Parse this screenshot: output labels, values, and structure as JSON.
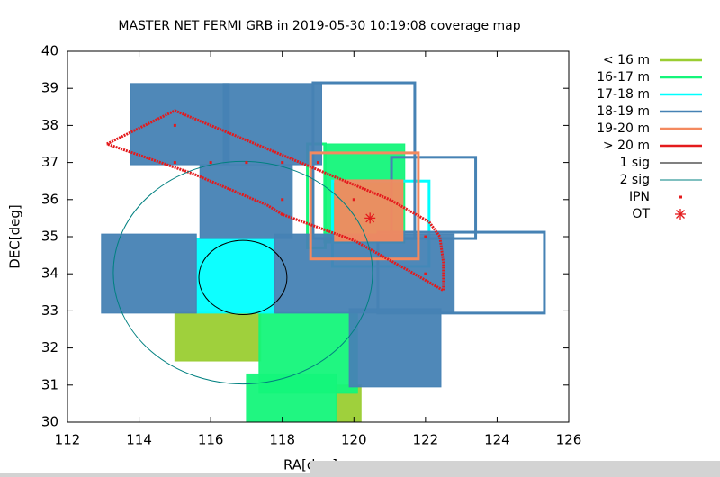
{
  "chart_data": {
    "type": "coverage",
    "title": "MASTER NET FERMI GRB in 2019-05-30 10:19:08 coverage map",
    "xlabel": "RA[deg]",
    "ylabel": "DEC[deg]",
    "xlim": [
      112,
      126
    ],
    "ylim": [
      30,
      40
    ],
    "xticks": [
      112,
      114,
      116,
      118,
      120,
      122,
      124,
      126
    ],
    "yticks": [
      30,
      31,
      32,
      33,
      34,
      35,
      36,
      37,
      38,
      39,
      40
    ],
    "series": [
      {
        "name": "< 16 m",
        "color": "#9acd32",
        "fields": {
          "x0": [
            115.0,
            119.5
          ],
          "x1": [
            117.4,
            120.2
          ],
          "y0": [
            31.65,
            30
          ],
          "y1": [
            32.96,
            31.0
          ],
          "filled": [
            true,
            true
          ]
        }
      },
      {
        "name": "16-17 m",
        "color": "#14f57a",
        "fields": {
          "x0": [
            117.35,
            117.0,
            119.16,
            118.7
          ],
          "x1": [
            120.1,
            119.5,
            121.42,
            119.2
          ],
          "y0": [
            30.78,
            30,
            34.83,
            34.7
          ],
          "y1": [
            32.96,
            31.3,
            37.5,
            37.5
          ],
          "filled": [
            true,
            true,
            true,
            false
          ]
        }
      },
      {
        "name": "17-18 m",
        "color": "#00ffff",
        "fields": {
          "x0": [
            115.6,
            119.4
          ],
          "x1": [
            117.8,
            122.1
          ],
          "y0": [
            32.94,
            34.2
          ],
          "y1": [
            34.95,
            36.5
          ],
          "filled": [
            true,
            false
          ]
        }
      },
      {
        "name": "18-19 m",
        "color": "#4682b4",
        "fields": {
          "x0": [
            113.76,
            116.35,
            112.95,
            117.78,
            119.87,
            115.7,
            118.86,
            121.05,
            120.67
          ],
          "x1": [
            116.52,
            119.1,
            115.6,
            122.8,
            122.43,
            118.28,
            121.7,
            123.4,
            125.32
          ],
          "y0": [
            36.94,
            36.94,
            32.94,
            32.94,
            30.95,
            34.95,
            34.95,
            34.95,
            32.94
          ],
          "y1": [
            39.13,
            39.13,
            35.07,
            35.07,
            33.06,
            36.94,
            39.15,
            37.14,
            35.12
          ],
          "filled": [
            true,
            true,
            true,
            true,
            true,
            true,
            false,
            false,
            false
          ]
        }
      },
      {
        "name": "19-20 m",
        "color": "#f4895f",
        "fields": {
          "x0": [
            119.46,
            118.79
          ],
          "x1": [
            121.37,
            121.8
          ],
          "y0": [
            34.88,
            34.4
          ],
          "y1": [
            36.53,
            37.26
          ],
          "filled": [
            true,
            false
          ]
        }
      },
      {
        "name": "> 20 m",
        "color": "#e41a1c",
        "track": {
          "x": [
            113.1,
            115.0,
            116.0,
            118.0,
            120.0,
            121.0,
            122.1,
            122.4,
            122.5,
            122.5,
            121.5,
            120.0,
            118.0,
            117.58,
            115.5,
            113.1
          ],
          "y": [
            37.5,
            38.4,
            38.0,
            37.2,
            36.4,
            36.0,
            35.4,
            35.0,
            34.3,
            33.55,
            34.1,
            34.9,
            35.6,
            35.85,
            36.7,
            37.5
          ]
        }
      }
    ],
    "sigma": [
      {
        "name": "1 sig",
        "color": "#000000",
        "cx": 116.9,
        "cy": 33.9,
        "rx": 1.23,
        "ry": 1.0
      },
      {
        "name": "2 sig",
        "color": "#008080",
        "cx": 116.9,
        "cy": 34.03,
        "rx": 3.62,
        "ry": 3.0
      }
    ],
    "ipn": {
      "name": "IPN",
      "color": "#e41a1c",
      "x": [
        115,
        115,
        116,
        117,
        118,
        118,
        118,
        119,
        120,
        122,
        122
      ],
      "y": [
        38,
        37,
        37,
        37,
        37,
        36,
        35.6,
        37,
        36,
        35,
        34
      ]
    },
    "ot": {
      "name": "OT",
      "color": "#e41a1c",
      "x": 120.45,
      "y": 35.5
    }
  }
}
